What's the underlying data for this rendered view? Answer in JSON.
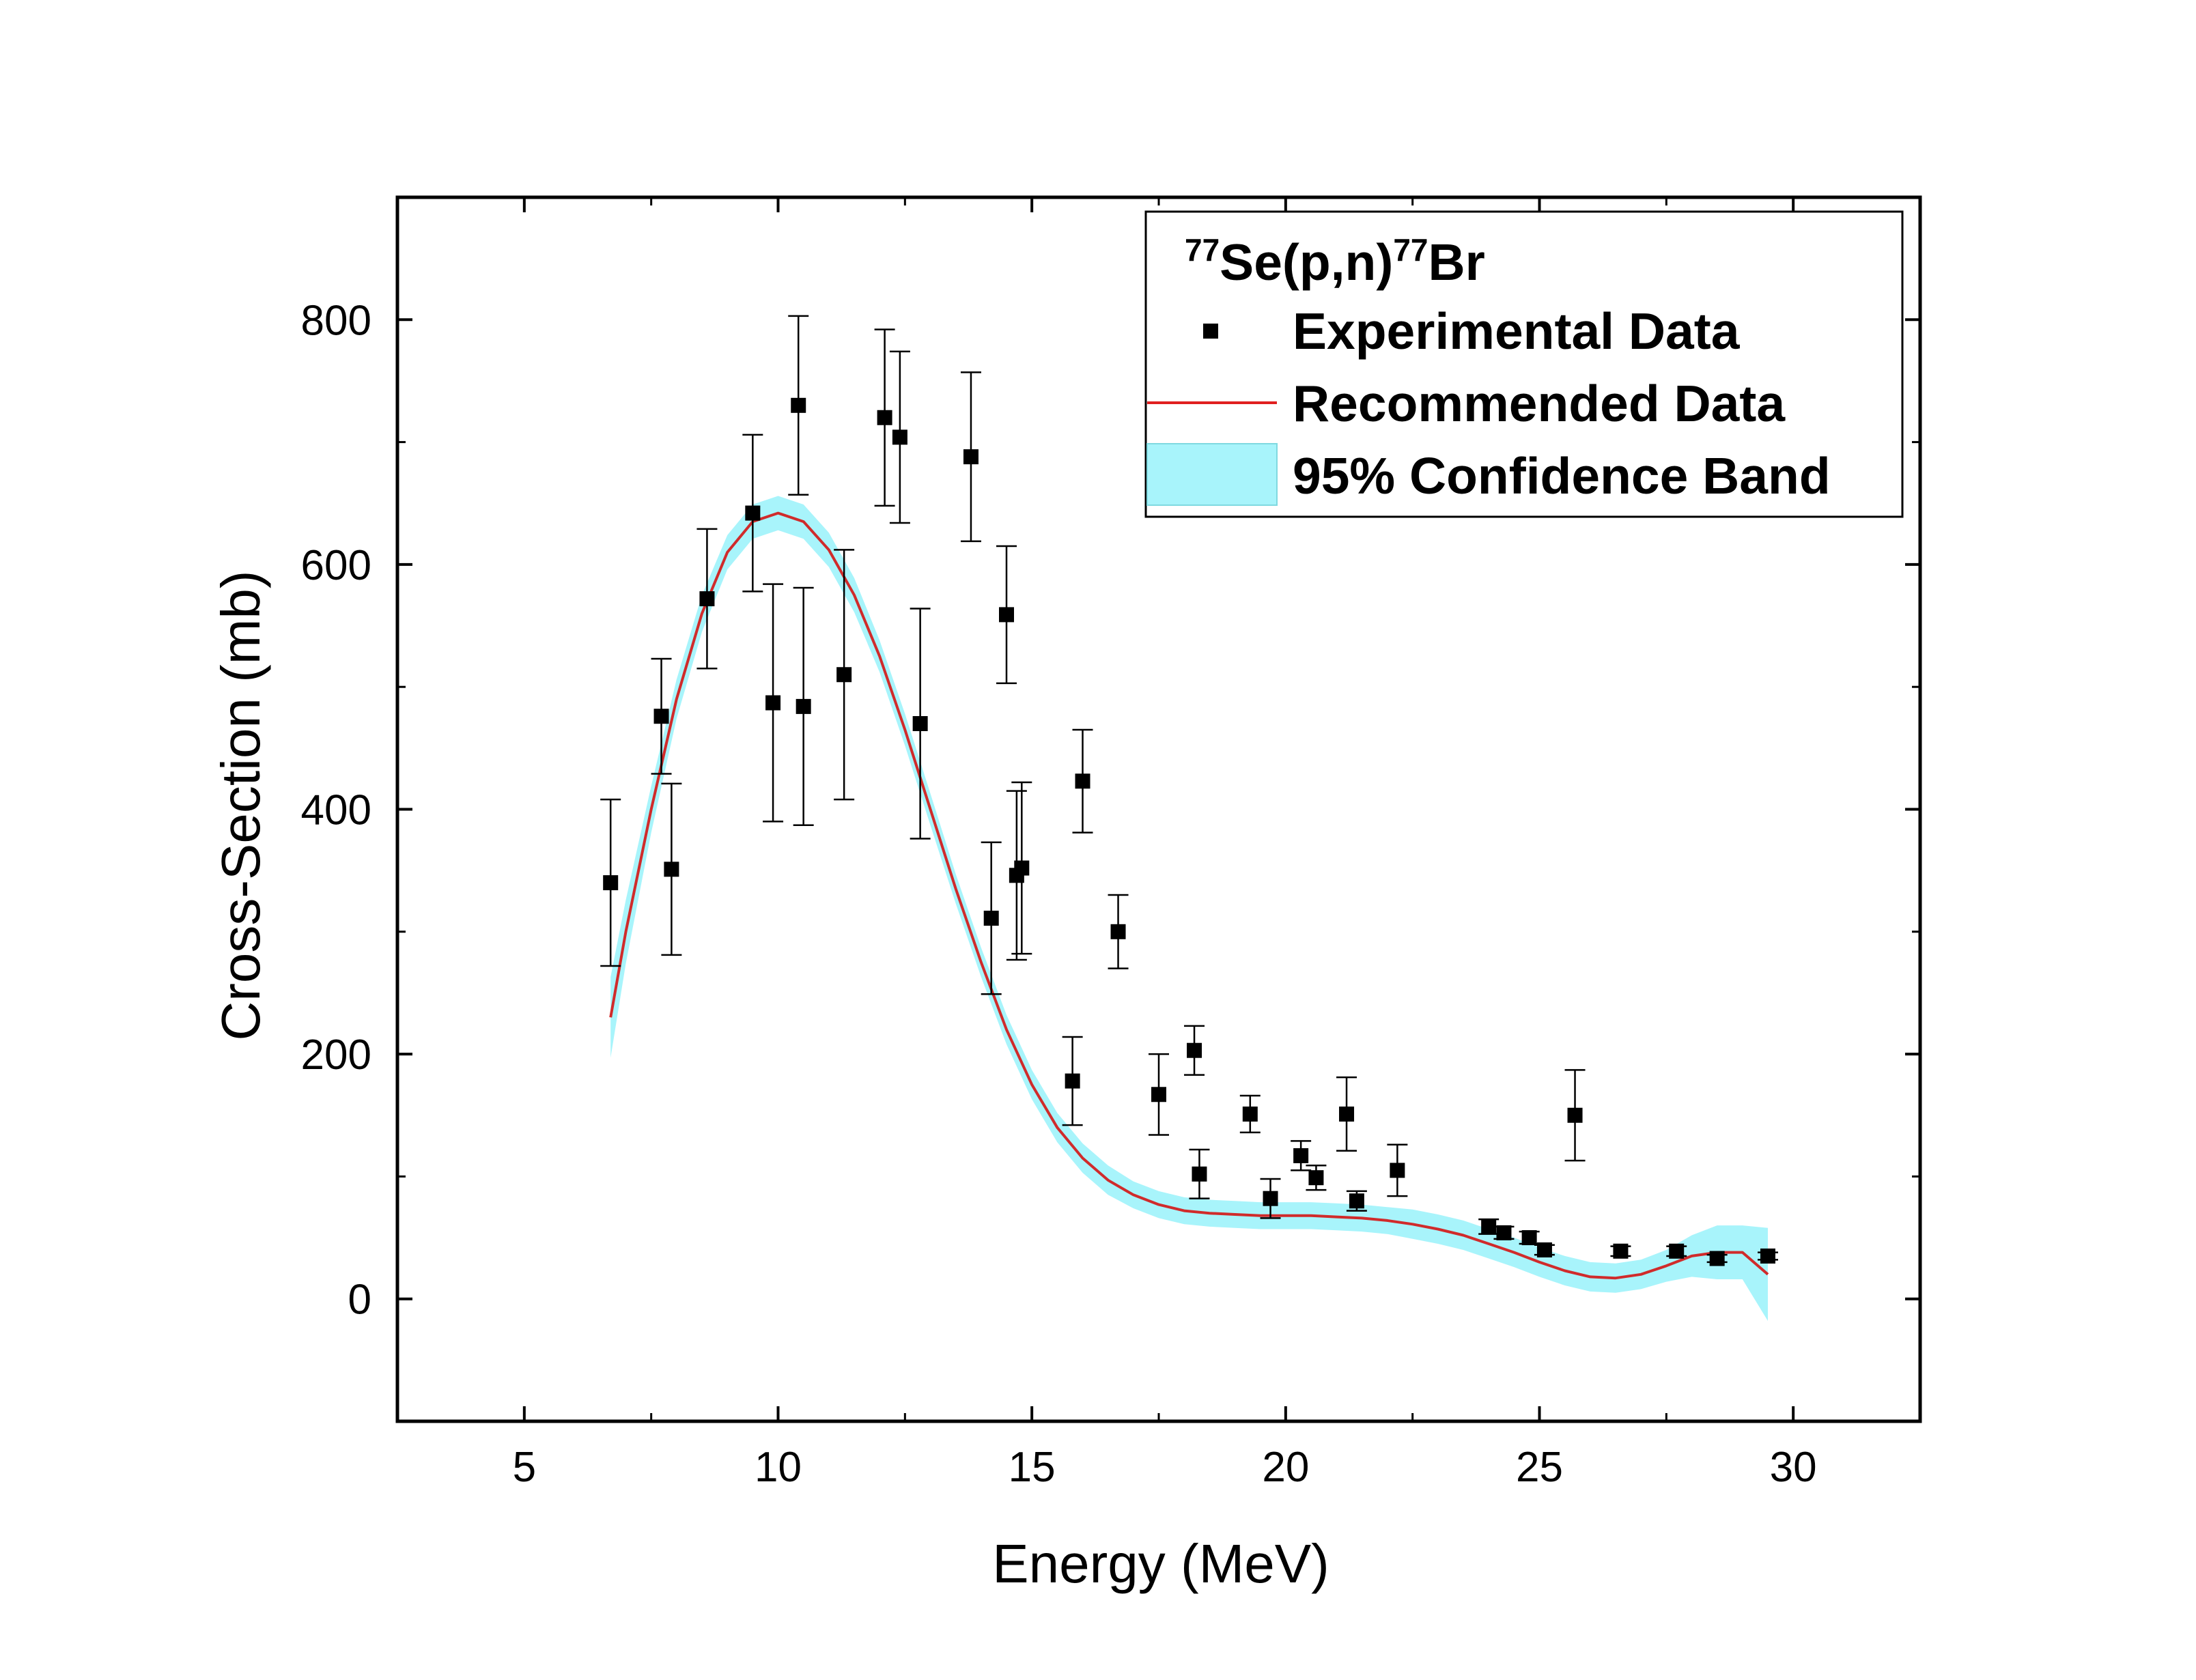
{
  "chart_data": {
    "type": "scatter",
    "xlabel": "Energy (MeV)",
    "ylabel": "Cross-Section (mb)",
    "xlim": [
      2.5,
      32.5
    ],
    "ylim": [
      -100,
      900
    ],
    "xticks": [
      5,
      10,
      15,
      20,
      25,
      30
    ],
    "yticks": [
      0,
      200,
      400,
      600,
      800
    ],
    "grid": false,
    "legend": {
      "placement": "top-right",
      "title": {
        "pre_sup": "77",
        "pre": "Se(p,n)",
        "post_sup": "77",
        "post": "Br"
      },
      "entries": [
        "Experimental Data",
        "Recommended Data",
        "95% Confidence Band"
      ]
    },
    "series": [
      {
        "name": "Experimental Data",
        "kind": "scatter-errorbar",
        "color": "#000000",
        "points": [
          {
            "x": 6.7,
            "y": 340,
            "err": 68
          },
          {
            "x": 7.7,
            "y": 476,
            "err": 47
          },
          {
            "x": 7.9,
            "y": 351,
            "err": 70
          },
          {
            "x": 8.6,
            "y": 572,
            "err": 57
          },
          {
            "x": 9.5,
            "y": 642,
            "err": 64
          },
          {
            "x": 9.9,
            "y": 487,
            "err": 97
          },
          {
            "x": 10.4,
            "y": 730,
            "err": 73
          },
          {
            "x": 10.5,
            "y": 484,
            "err": 97
          },
          {
            "x": 11.3,
            "y": 510,
            "err": 102
          },
          {
            "x": 12.1,
            "y": 720,
            "err": 72
          },
          {
            "x": 12.4,
            "y": 704,
            "err": 70
          },
          {
            "x": 12.8,
            "y": 470,
            "err": 94
          },
          {
            "x": 13.8,
            "y": 688,
            "err": 69
          },
          {
            "x": 14.2,
            "y": 311,
            "err": 62
          },
          {
            "x": 14.5,
            "y": 559,
            "err": 56
          },
          {
            "x": 14.7,
            "y": 346,
            "err": 69
          },
          {
            "x": 14.8,
            "y": 352,
            "err": 70
          },
          {
            "x": 15.8,
            "y": 178,
            "err": 36
          },
          {
            "x": 16.0,
            "y": 423,
            "err": 42
          },
          {
            "x": 16.7,
            "y": 300,
            "err": 30
          },
          {
            "x": 17.5,
            "y": 167,
            "err": 33
          },
          {
            "x": 18.2,
            "y": 203,
            "err": 20
          },
          {
            "x": 18.3,
            "y": 102,
            "err": 20
          },
          {
            "x": 19.3,
            "y": 151,
            "err": 15
          },
          {
            "x": 19.7,
            "y": 82,
            "err": 16
          },
          {
            "x": 20.3,
            "y": 117,
            "err": 12
          },
          {
            "x": 20.6,
            "y": 99,
            "err": 10
          },
          {
            "x": 21.2,
            "y": 151,
            "err": 30
          },
          {
            "x": 21.4,
            "y": 80,
            "err": 8
          },
          {
            "x": 22.2,
            "y": 105,
            "err": 21
          },
          {
            "x": 24.0,
            "y": 59,
            "err": 6
          },
          {
            "x": 24.3,
            "y": 54,
            "err": 5
          },
          {
            "x": 24.8,
            "y": 50,
            "err": 5
          },
          {
            "x": 25.1,
            "y": 40,
            "err": 4
          },
          {
            "x": 25.7,
            "y": 150,
            "err": 37
          },
          {
            "x": 26.6,
            "y": 39,
            "err": 4
          },
          {
            "x": 27.7,
            "y": 39,
            "err": 4
          },
          {
            "x": 28.5,
            "y": 33,
            "err": 3
          },
          {
            "x": 29.5,
            "y": 35,
            "err": 3
          }
        ]
      },
      {
        "name": "Recommended Data",
        "kind": "line",
        "color": "#d02b2b",
        "x": [
          6.7,
          7.0,
          7.5,
          8.0,
          8.5,
          9.0,
          9.5,
          10.0,
          10.5,
          11.0,
          11.5,
          12.0,
          12.5,
          13.0,
          13.5,
          14.0,
          14.5,
          15.0,
          15.5,
          16.0,
          16.5,
          17.0,
          17.5,
          18.0,
          18.5,
          19.0,
          19.5,
          20.0,
          20.5,
          21.0,
          21.5,
          22.0,
          22.5,
          23.0,
          23.5,
          24.0,
          24.5,
          25.0,
          25.5,
          26.0,
          26.5,
          27.0,
          27.5,
          28.0,
          28.5,
          29.0,
          29.5
        ],
        "y": [
          230,
          300,
          400,
          490,
          560,
          610,
          635,
          642,
          635,
          612,
          575,
          525,
          465,
          400,
          335,
          275,
          220,
          175,
          140,
          115,
          97,
          85,
          77,
          72,
          70,
          69,
          68,
          68,
          68,
          67,
          66,
          64,
          61,
          57,
          52,
          45,
          38,
          30,
          23,
          18,
          17,
          20,
          27,
          35,
          38,
          38,
          20
        ]
      },
      {
        "name": "95% Confidence Band",
        "kind": "band",
        "color": "#a8f4fb",
        "x": [
          6.7,
          7.0,
          7.5,
          8.0,
          8.5,
          9.0,
          9.5,
          10.0,
          10.5,
          11.0,
          11.5,
          12.0,
          12.5,
          13.0,
          13.5,
          14.0,
          14.5,
          15.0,
          15.5,
          16.0,
          16.5,
          17.0,
          17.5,
          18.0,
          18.5,
          19.0,
          19.5,
          20.0,
          20.5,
          21.0,
          21.5,
          22.0,
          22.5,
          23.0,
          23.5,
          24.0,
          24.5,
          25.0,
          25.5,
          26.0,
          26.5,
          27.0,
          27.5,
          28.0,
          28.5,
          29.0,
          29.5
        ],
        "halfwidth": [
          33,
          26,
          19,
          16,
          15,
          14,
          14,
          14,
          14,
          14,
          14,
          13,
          13,
          13,
          12,
          12,
          12,
          12,
          12,
          12,
          12,
          11,
          11,
          11,
          11,
          11,
          11,
          11,
          11,
          11,
          11,
          11,
          12,
          12,
          12,
          12,
          12,
          12,
          12,
          12,
          12,
          12,
          13,
          17,
          22,
          22,
          38
        ]
      }
    ]
  }
}
